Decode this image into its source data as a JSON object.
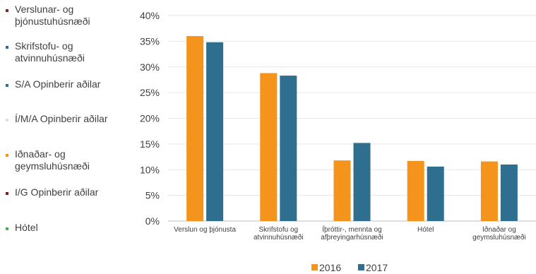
{
  "left_legend": {
    "items": [
      {
        "lines": [
          "Verslunar- og",
          "þjónustuhúsnæði"
        ],
        "color": "#7b2c1f"
      },
      {
        "lines": [
          "Skrifstofu- og",
          "atvinnuhúsnæði"
        ],
        "color": "#2e6e8e"
      },
      {
        "lines": [
          "S/A Opinberir aðilar"
        ],
        "color": "#2e6e8e"
      },
      {
        "lines": [
          "Í/M/A Opinberir aðilar"
        ],
        "color": "#e0e0e0"
      },
      {
        "lines": [
          "Iðnaðar- og",
          "geymsluhúsnæði"
        ],
        "color": "#f4941c"
      },
      {
        "lines": [
          "I/G Opinberir aðilar"
        ],
        "color": "#7b1f1f"
      },
      {
        "lines": [
          "Hótel"
        ],
        "color": "#4caf50"
      }
    ]
  },
  "chart_data": {
    "type": "bar",
    "categories": [
      [
        "Verslun og þjónusta"
      ],
      [
        "Skrifstofu og",
        "atvinnuhúsnæði"
      ],
      [
        "Íþróttir-, mennta og",
        "afþreyingarhúsnæði"
      ],
      [
        "Hótel"
      ],
      [
        "Iðnaðar og",
        "geymsluhúsnæði"
      ]
    ],
    "series": [
      {
        "name": "2016",
        "color": "#f4941c",
        "values": [
          36.0,
          28.8,
          11.8,
          11.7,
          11.6
        ]
      },
      {
        "name": "2017",
        "color": "#2e6e8e",
        "values": [
          34.8,
          28.3,
          15.2,
          10.6,
          11.0
        ]
      }
    ],
    "ylim": [
      0,
      40
    ],
    "yticks": [
      "0%",
      "5%",
      "10%",
      "15%",
      "20%",
      "25%",
      "30%",
      "35%",
      "40%"
    ],
    "ytick_values": [
      0,
      5,
      10,
      15,
      20,
      25,
      30,
      35,
      40
    ],
    "grid": true,
    "legend_position": "bottom"
  }
}
